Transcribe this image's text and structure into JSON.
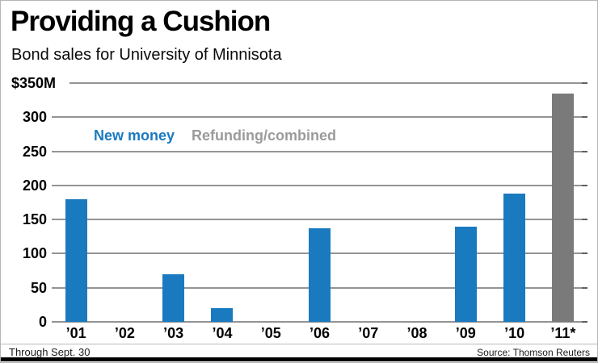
{
  "chart_data": {
    "type": "bar",
    "title": "Providing a Cushion",
    "subtitle": "Bond sales for University of Minnisota",
    "categories": [
      "’01",
      "’02",
      "’03",
      "’04",
      "’05",
      "’06",
      "’07",
      "’08",
      "’09",
      "’10",
      "’11*"
    ],
    "series": [
      {
        "name": "New money",
        "color": "#1a7abf",
        "values": [
          180,
          null,
          70,
          20,
          null,
          137,
          null,
          null,
          140,
          188,
          null
        ]
      },
      {
        "name": "Refunding/combined",
        "color": "#7a7a7a",
        "legend_color": "#9b9b9b",
        "values": [
          null,
          null,
          null,
          null,
          null,
          null,
          null,
          null,
          null,
          null,
          335
        ]
      }
    ],
    "y_ticks": [
      {
        "value": 350,
        "label": "$350M"
      },
      {
        "value": 300,
        "label": "300"
      },
      {
        "value": 250,
        "label": "250"
      },
      {
        "value": 200,
        "label": "200"
      },
      {
        "value": 150,
        "label": "150"
      },
      {
        "value": 100,
        "label": "100"
      },
      {
        "value": 50,
        "label": "50"
      },
      {
        "value": 0,
        "label": "0"
      }
    ],
    "ylim": [
      0,
      350
    ],
    "xlabel": "",
    "ylabel": "$350M",
    "grid": true,
    "legend_position": "inside-top-left",
    "footnote": "Through Sept. 30",
    "source": "Source: Thomson Reuters"
  },
  "colors": {
    "grid": "#949494",
    "axis_tick": "#606060",
    "frame": "#b5b5b5",
    "footer_rule": "#bbbbbb",
    "bottom_rule": "#000000",
    "background": "#ffffff"
  }
}
